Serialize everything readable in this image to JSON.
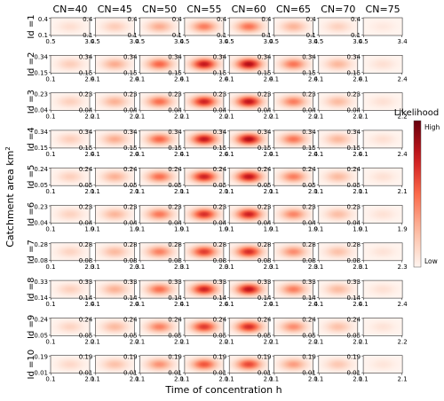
{
  "chart_data": {
    "type": "heatmap",
    "xlabel": "Time of concentration h",
    "ylabel": "Catchment area km",
    "ylabel_superscript": "2",
    "columns": [
      "CN=40",
      "CN=45",
      "CN=50",
      "CN=55",
      "CN=60",
      "CN=65",
      "CN=70",
      "CN=75"
    ],
    "column_intensity": [
      0.18,
      0.32,
      0.55,
      0.82,
      0.88,
      0.5,
      0.28,
      0.1
    ],
    "rows": [
      {
        "label": "Id =1",
        "xlim": [
          "0.5",
          "3.4"
        ],
        "ylim": [
          "0.1",
          "0.4"
        ],
        "intensity": 0.55
      },
      {
        "label": "Id =2",
        "xlim": [
          "0.1",
          "2.4"
        ],
        "ylim": [
          "0.15",
          "0.34"
        ],
        "intensity": 0.95
      },
      {
        "label": "Id =3",
        "xlim": [
          "0.1",
          "2.2"
        ],
        "ylim": [
          "0.04",
          "0.23"
        ],
        "intensity": 0.9
      },
      {
        "label": "Id =4",
        "xlim": [
          "0.1",
          "2.4"
        ],
        "ylim": [
          "0.15",
          "0.34"
        ],
        "intensity": 0.95
      },
      {
        "label": "Id =5",
        "xlim": [
          "0.1",
          "2.1"
        ],
        "ylim": [
          "0.05",
          "0.24"
        ],
        "intensity": 0.9
      },
      {
        "label": "Id =6",
        "xlim": [
          "0.1",
          "1.9"
        ],
        "ylim": [
          "0.04",
          "0.23"
        ],
        "intensity": 0.85
      },
      {
        "label": "Id =7",
        "xlim": [
          "0.1",
          "2.3"
        ],
        "ylim": [
          "0.08",
          "0.28"
        ],
        "intensity": 0.8
      },
      {
        "label": "Id =8",
        "xlim": [
          "0.1",
          "2.4"
        ],
        "ylim": [
          "0.14",
          "0.33"
        ],
        "intensity": 0.9
      },
      {
        "label": "Id =9",
        "xlim": [
          "0.1",
          "2.2"
        ],
        "ylim": [
          "0.05",
          "0.24"
        ],
        "intensity": 0.8
      },
      {
        "label": "Id =10",
        "xlim": [
          "0.1",
          "2.1"
        ],
        "ylim": [
          "0.01",
          "0.19"
        ],
        "intensity": 0.7
      }
    ],
    "colorbar": {
      "title": "Likelihood",
      "high_label": "High",
      "low_label": "Low",
      "low_color": "#fff5f0",
      "high_color": "#67000d"
    }
  }
}
